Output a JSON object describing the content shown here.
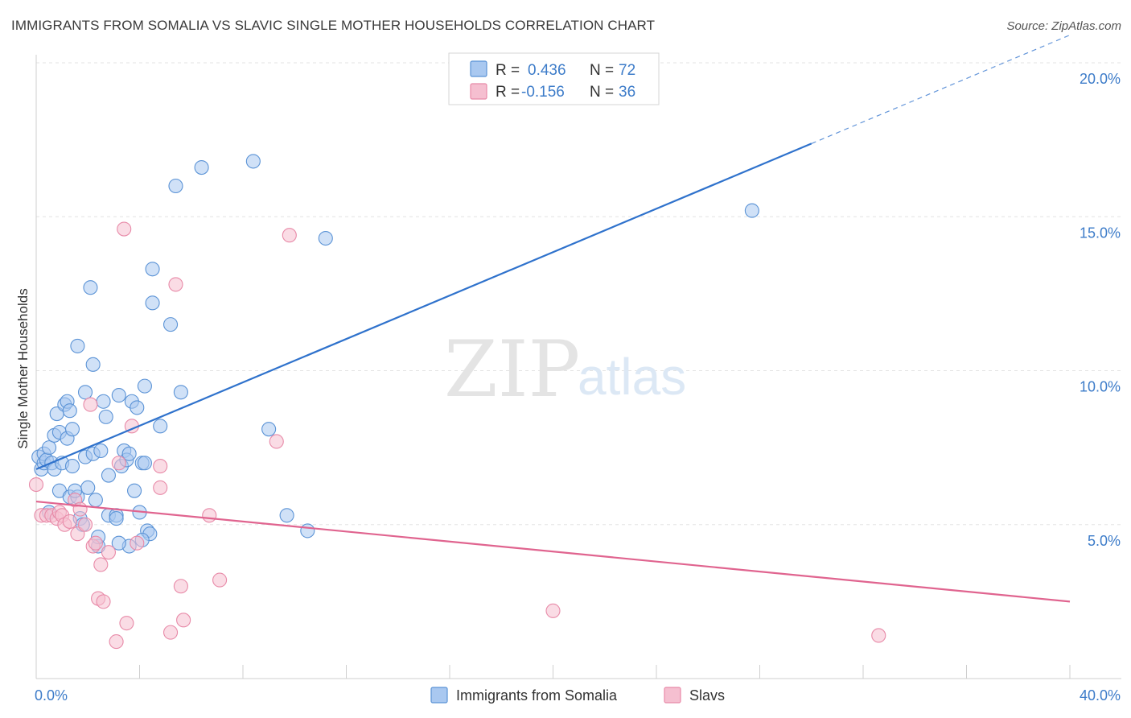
{
  "header": {
    "title": "IMMIGRANTS FROM SOMALIA VS SLAVIC SINGLE MOTHER HOUSEHOLDS CORRELATION CHART",
    "source": "Source: ZipAtlas.com"
  },
  "watermark": {
    "zip": "ZIP",
    "atlas": "atlas"
  },
  "colors": {
    "somalia_fill": "#a9c8f0",
    "somalia_stroke": "#5b93d6",
    "somalia_line": "#2f72cc",
    "slavs_fill": "#f5bfd0",
    "slavs_stroke": "#e88aa8",
    "slavs_line": "#e0648f",
    "grid": "#e3e3e3",
    "tick_text": "#3d7cc9"
  },
  "legend": {
    "rows": [
      {
        "r_label": "R =",
        "r_value": "0.436",
        "n_label": "N =",
        "n_value": "72"
      },
      {
        "r_label": "R =",
        "r_value": "-0.156",
        "n_label": "N =",
        "n_value": "36"
      }
    ]
  },
  "bottom_legend": [
    "Immigrants from Somalia",
    "Slavs"
  ],
  "chart_data": {
    "type": "scatter",
    "title": "IMMIGRANTS FROM SOMALIA VS SLAVIC SINGLE MOTHER HOUSEHOLDS CORRELATION CHART",
    "xlabel": "",
    "ylabel": "Single Mother Households",
    "xlim": [
      0,
      40
    ],
    "ylim": [
      0,
      20
    ],
    "x_tick_labels": [
      "0.0%",
      "40.0%"
    ],
    "y_ticks": [
      5,
      10,
      15,
      20
    ],
    "y_tick_labels": [
      "5.0%",
      "10.0%",
      "15.0%",
      "20.0%"
    ],
    "grid": true,
    "legend_position": "top-center",
    "series": [
      {
        "name": "Immigrants from Somalia",
        "R": 0.436,
        "N": 72,
        "trend": {
          "x0": 0,
          "y0": 6.8,
          "x1": 40,
          "y1": 20.9,
          "solid_until_x": 30
        },
        "points": [
          [
            0.1,
            7.2
          ],
          [
            0.2,
            6.8
          ],
          [
            0.3,
            7.0
          ],
          [
            0.3,
            7.3
          ],
          [
            0.4,
            7.1
          ],
          [
            0.5,
            5.4
          ],
          [
            0.5,
            7.5
          ],
          [
            0.6,
            7.0
          ],
          [
            0.7,
            6.8
          ],
          [
            0.7,
            7.9
          ],
          [
            0.8,
            8.6
          ],
          [
            0.9,
            6.1
          ],
          [
            0.9,
            8.0
          ],
          [
            1.0,
            7.0
          ],
          [
            1.1,
            8.9
          ],
          [
            1.2,
            9.0
          ],
          [
            1.2,
            7.8
          ],
          [
            1.3,
            5.9
          ],
          [
            1.3,
            8.7
          ],
          [
            1.4,
            6.9
          ],
          [
            1.4,
            8.1
          ],
          [
            1.6,
            10.8
          ],
          [
            1.6,
            5.9
          ],
          [
            1.7,
            5.2
          ],
          [
            1.8,
            5.0
          ],
          [
            1.9,
            7.2
          ],
          [
            1.9,
            9.3
          ],
          [
            2.0,
            6.2
          ],
          [
            2.1,
            12.7
          ],
          [
            2.2,
            7.3
          ],
          [
            2.2,
            10.2
          ],
          [
            2.3,
            5.8
          ],
          [
            2.4,
            4.3
          ],
          [
            2.5,
            7.4
          ],
          [
            2.6,
            9.0
          ],
          [
            2.7,
            8.5
          ],
          [
            2.8,
            6.6
          ],
          [
            2.8,
            5.3
          ],
          [
            3.1,
            5.3
          ],
          [
            3.1,
            5.2
          ],
          [
            3.2,
            9.2
          ],
          [
            3.3,
            6.9
          ],
          [
            3.4,
            7.4
          ],
          [
            3.5,
            7.1
          ],
          [
            3.6,
            7.3
          ],
          [
            3.6,
            4.3
          ],
          [
            3.7,
            9.0
          ],
          [
            3.8,
            6.1
          ],
          [
            3.9,
            8.8
          ],
          [
            4.0,
            5.4
          ],
          [
            4.1,
            7.0
          ],
          [
            4.2,
            7.0
          ],
          [
            4.2,
            9.5
          ],
          [
            4.3,
            4.8
          ],
          [
            4.4,
            4.7
          ],
          [
            4.5,
            13.3
          ],
          [
            4.5,
            12.2
          ],
          [
            4.8,
            8.2
          ],
          [
            5.2,
            11.5
          ],
          [
            5.4,
            16.0
          ],
          [
            5.6,
            9.3
          ],
          [
            6.4,
            16.6
          ],
          [
            8.4,
            16.8
          ],
          [
            9.0,
            8.1
          ],
          [
            9.7,
            5.3
          ],
          [
            11.2,
            14.3
          ],
          [
            10.5,
            4.8
          ],
          [
            4.1,
            4.5
          ],
          [
            3.2,
            4.4
          ],
          [
            2.4,
            4.6
          ],
          [
            1.5,
            6.1
          ],
          [
            27.7,
            15.2
          ]
        ]
      },
      {
        "name": "Slavs",
        "R": -0.156,
        "N": 36,
        "trend": {
          "x0": 0,
          "y0": 5.75,
          "x1": 40,
          "y1": 2.5
        },
        "points": [
          [
            0.0,
            6.3
          ],
          [
            0.2,
            5.3
          ],
          [
            0.4,
            5.3
          ],
          [
            0.6,
            5.3
          ],
          [
            0.8,
            5.2
          ],
          [
            0.9,
            5.4
          ],
          [
            1.0,
            5.3
          ],
          [
            1.1,
            5.0
          ],
          [
            1.3,
            5.1
          ],
          [
            1.5,
            5.8
          ],
          [
            1.6,
            4.7
          ],
          [
            1.7,
            5.5
          ],
          [
            1.9,
            5.0
          ],
          [
            2.1,
            8.9
          ],
          [
            2.2,
            4.3
          ],
          [
            2.3,
            4.4
          ],
          [
            2.4,
            2.6
          ],
          [
            2.5,
            3.7
          ],
          [
            2.6,
            2.5
          ],
          [
            2.8,
            4.1
          ],
          [
            3.1,
            1.2
          ],
          [
            3.2,
            7.0
          ],
          [
            3.4,
            14.6
          ],
          [
            3.5,
            1.8
          ],
          [
            3.7,
            8.2
          ],
          [
            3.9,
            4.4
          ],
          [
            4.8,
            6.9
          ],
          [
            4.8,
            6.2
          ],
          [
            5.2,
            1.5
          ],
          [
            5.4,
            12.8
          ],
          [
            5.6,
            3.0
          ],
          [
            5.7,
            1.9
          ],
          [
            6.7,
            5.3
          ],
          [
            7.1,
            3.2
          ],
          [
            9.3,
            7.7
          ],
          [
            9.8,
            14.4
          ]
        ],
        "extra_points": [
          [
            20.0,
            2.2
          ],
          [
            32.6,
            1.4
          ]
        ]
      }
    ]
  }
}
